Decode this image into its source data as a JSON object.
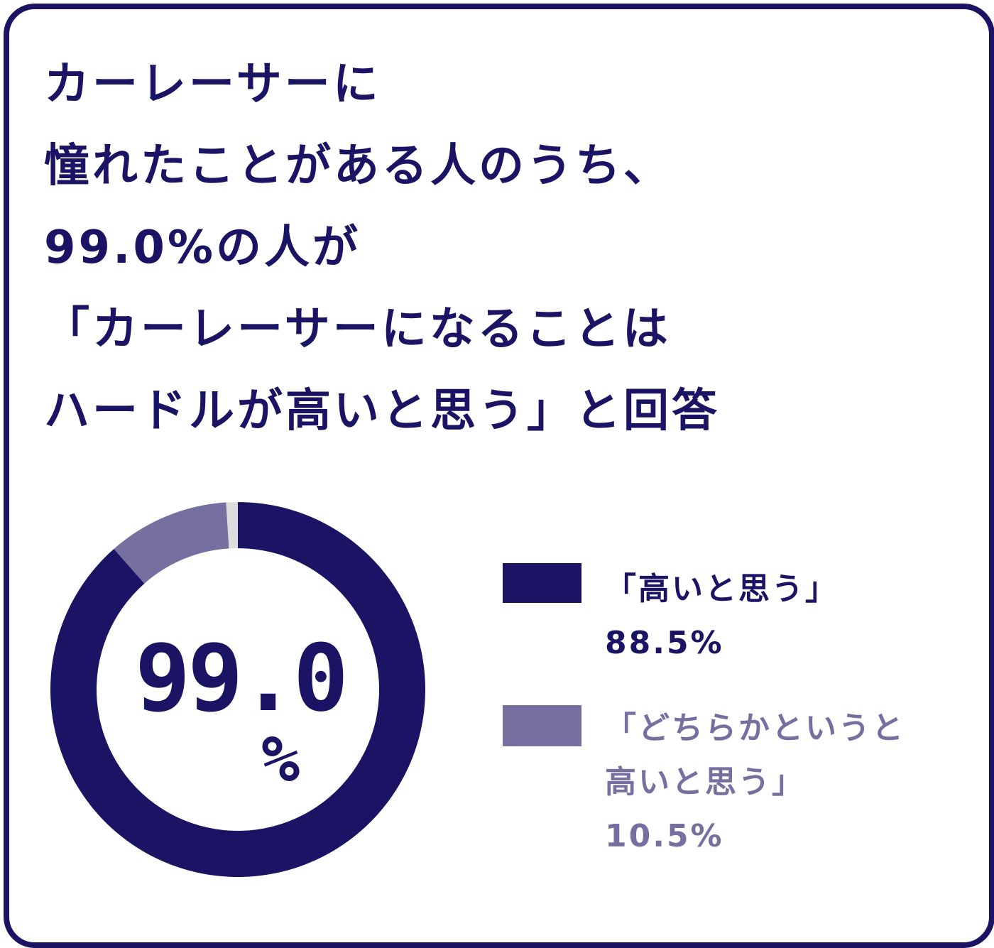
{
  "title_lines": [
    "カーレーサーに",
    "憧れたことがある人のうち、",
    "99.0%の人が",
    "「カーレーサーになることは",
    "ハードルが高いと思う」と回答"
  ],
  "center_label": {
    "value": "99.0",
    "unit": "%"
  },
  "chart_data": {
    "type": "pie",
    "variant": "donut",
    "start": "top, clockwise",
    "series": [
      {
        "name": "「高いと思う」",
        "value": 88.5,
        "label": "88.5%",
        "color": "#1b1464"
      },
      {
        "name": "「どちらかというと高いと思う」",
        "value": 10.5,
        "label": "10.5%",
        "color": "#7670a0"
      },
      {
        "value": 1.0,
        "color": "#dcdcdc"
      }
    ],
    "legend_placement": "right"
  },
  "legend": [
    {
      "lines": [
        "「高いと思う」"
      ],
      "value": "88.5%",
      "color": "#1b1464"
    },
    {
      "lines": [
        "「どちらかというと",
        "高いと思う」"
      ],
      "value": "10.5%",
      "color": "#7670a0"
    }
  ]
}
